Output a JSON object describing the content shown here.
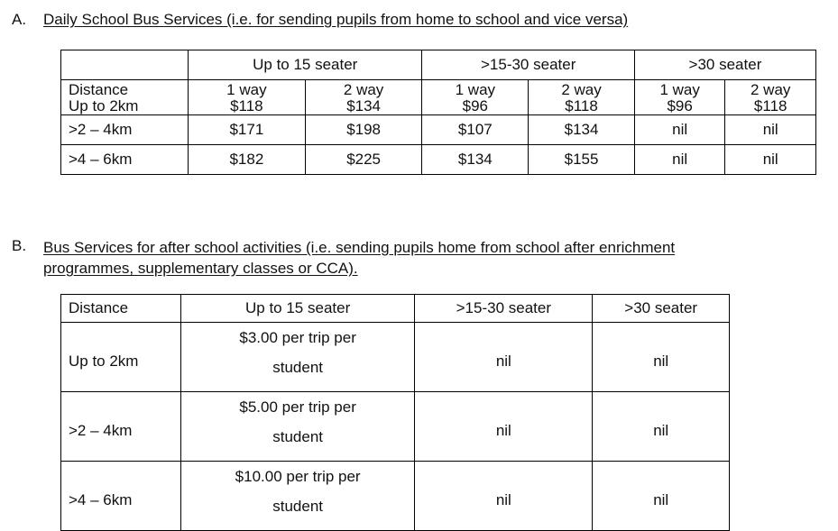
{
  "section_a": {
    "letter": "A.",
    "title": "Daily School Bus Services (i.e. for sending pupils from home to school and vice versa)",
    "groups": [
      "Up to 15 seater",
      ">15-30 seater",
      ">30 seater"
    ],
    "distance_header": "Distance",
    "sub_headers": [
      "1 way",
      "2 way",
      "1 way",
      "2 way",
      "1 way",
      "2 way"
    ],
    "rows": [
      {
        "distance": "Up to 2km",
        "values": [
          "$118",
          "$134",
          "$96",
          "$118",
          "$96",
          "$118"
        ]
      },
      {
        "distance": ">2 – 4km",
        "values": [
          "$171",
          "$198",
          "$107",
          "$134",
          "nil",
          "nil"
        ]
      },
      {
        "distance": ">4 – 6km",
        "values": [
          "$182",
          "$225",
          "$134",
          "$155",
          "nil",
          "nil"
        ]
      }
    ]
  },
  "section_b": {
    "letter": "B.",
    "title": "Bus Services for after school activities (i.e. sending pupils home from school after enrichment programmes, supplementary classes or CCA).",
    "headers": [
      "Distance",
      "Up to 15 seater",
      ">15-30 seater",
      ">30 seater"
    ],
    "rows": [
      {
        "distance": "Up to 2km",
        "price_line1": "$3.00 per trip per",
        "price_line2": "student",
        "col2": "nil",
        "col3": "nil"
      },
      {
        "distance": ">2 – 4km",
        "price_line1": "$5.00 per trip per",
        "price_line2": "student",
        "col2": "nil",
        "col3": "nil"
      },
      {
        "distance": ">4 – 6km",
        "price_line1": "$10.00 per trip per",
        "price_line2": "student",
        "col2": "nil",
        "col3": "nil"
      }
    ]
  }
}
